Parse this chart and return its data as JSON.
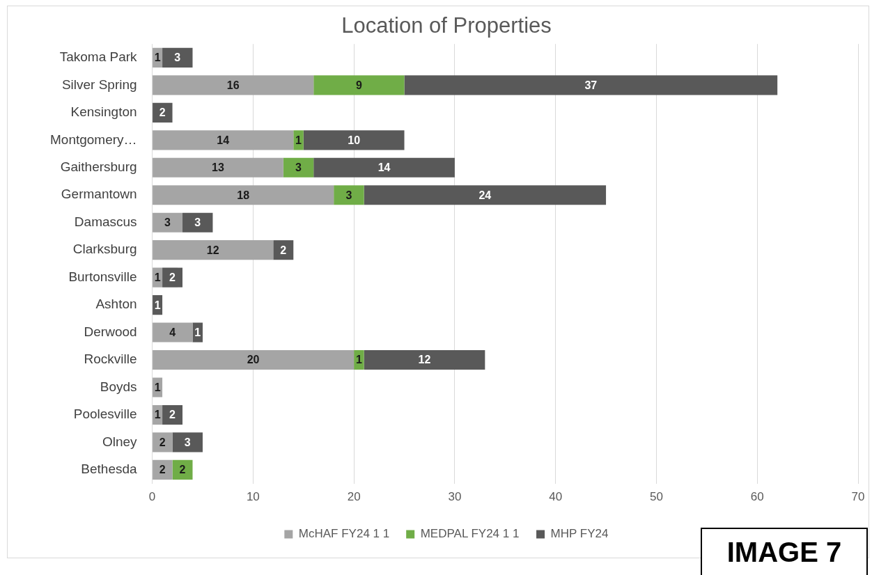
{
  "chart_data": {
    "type": "bar",
    "orientation": "horizontal",
    "stacked": true,
    "title": "Location of Properties",
    "categories": [
      "Takoma Park",
      "Silver Spring",
      "Kensington",
      "Montgomery…",
      "Gaithersburg",
      "Germantown",
      "Damascus",
      "Clarksburg",
      "Burtonsville",
      "Ashton",
      "Derwood",
      "Rockville",
      "Boyds",
      "Poolesville",
      "Olney",
      "Bethesda"
    ],
    "series": [
      {
        "name": "McHAF FY24 1 1",
        "color": "#a5a5a5",
        "values": [
          1,
          16,
          null,
          14,
          13,
          18,
          3,
          12,
          1,
          null,
          4,
          20,
          1,
          1,
          2,
          2
        ]
      },
      {
        "name": "MEDPAL FY24 1 1",
        "color": "#70ad47",
        "values": [
          null,
          9,
          null,
          1,
          3,
          3,
          null,
          null,
          null,
          null,
          null,
          1,
          null,
          null,
          null,
          2
        ]
      },
      {
        "name": "MHP FY24",
        "color": "#595959",
        "values": [
          3,
          37,
          2,
          10,
          14,
          24,
          3,
          2,
          2,
          1,
          1,
          12,
          null,
          2,
          3,
          null
        ]
      }
    ],
    "xlim": [
      0,
      70
    ],
    "xticks": [
      0,
      10,
      20,
      30,
      40,
      50,
      60,
      70
    ],
    "grid": "x",
    "legend": "bottom",
    "data_labels": true,
    "annotations": [
      "IMAGE 7"
    ]
  }
}
